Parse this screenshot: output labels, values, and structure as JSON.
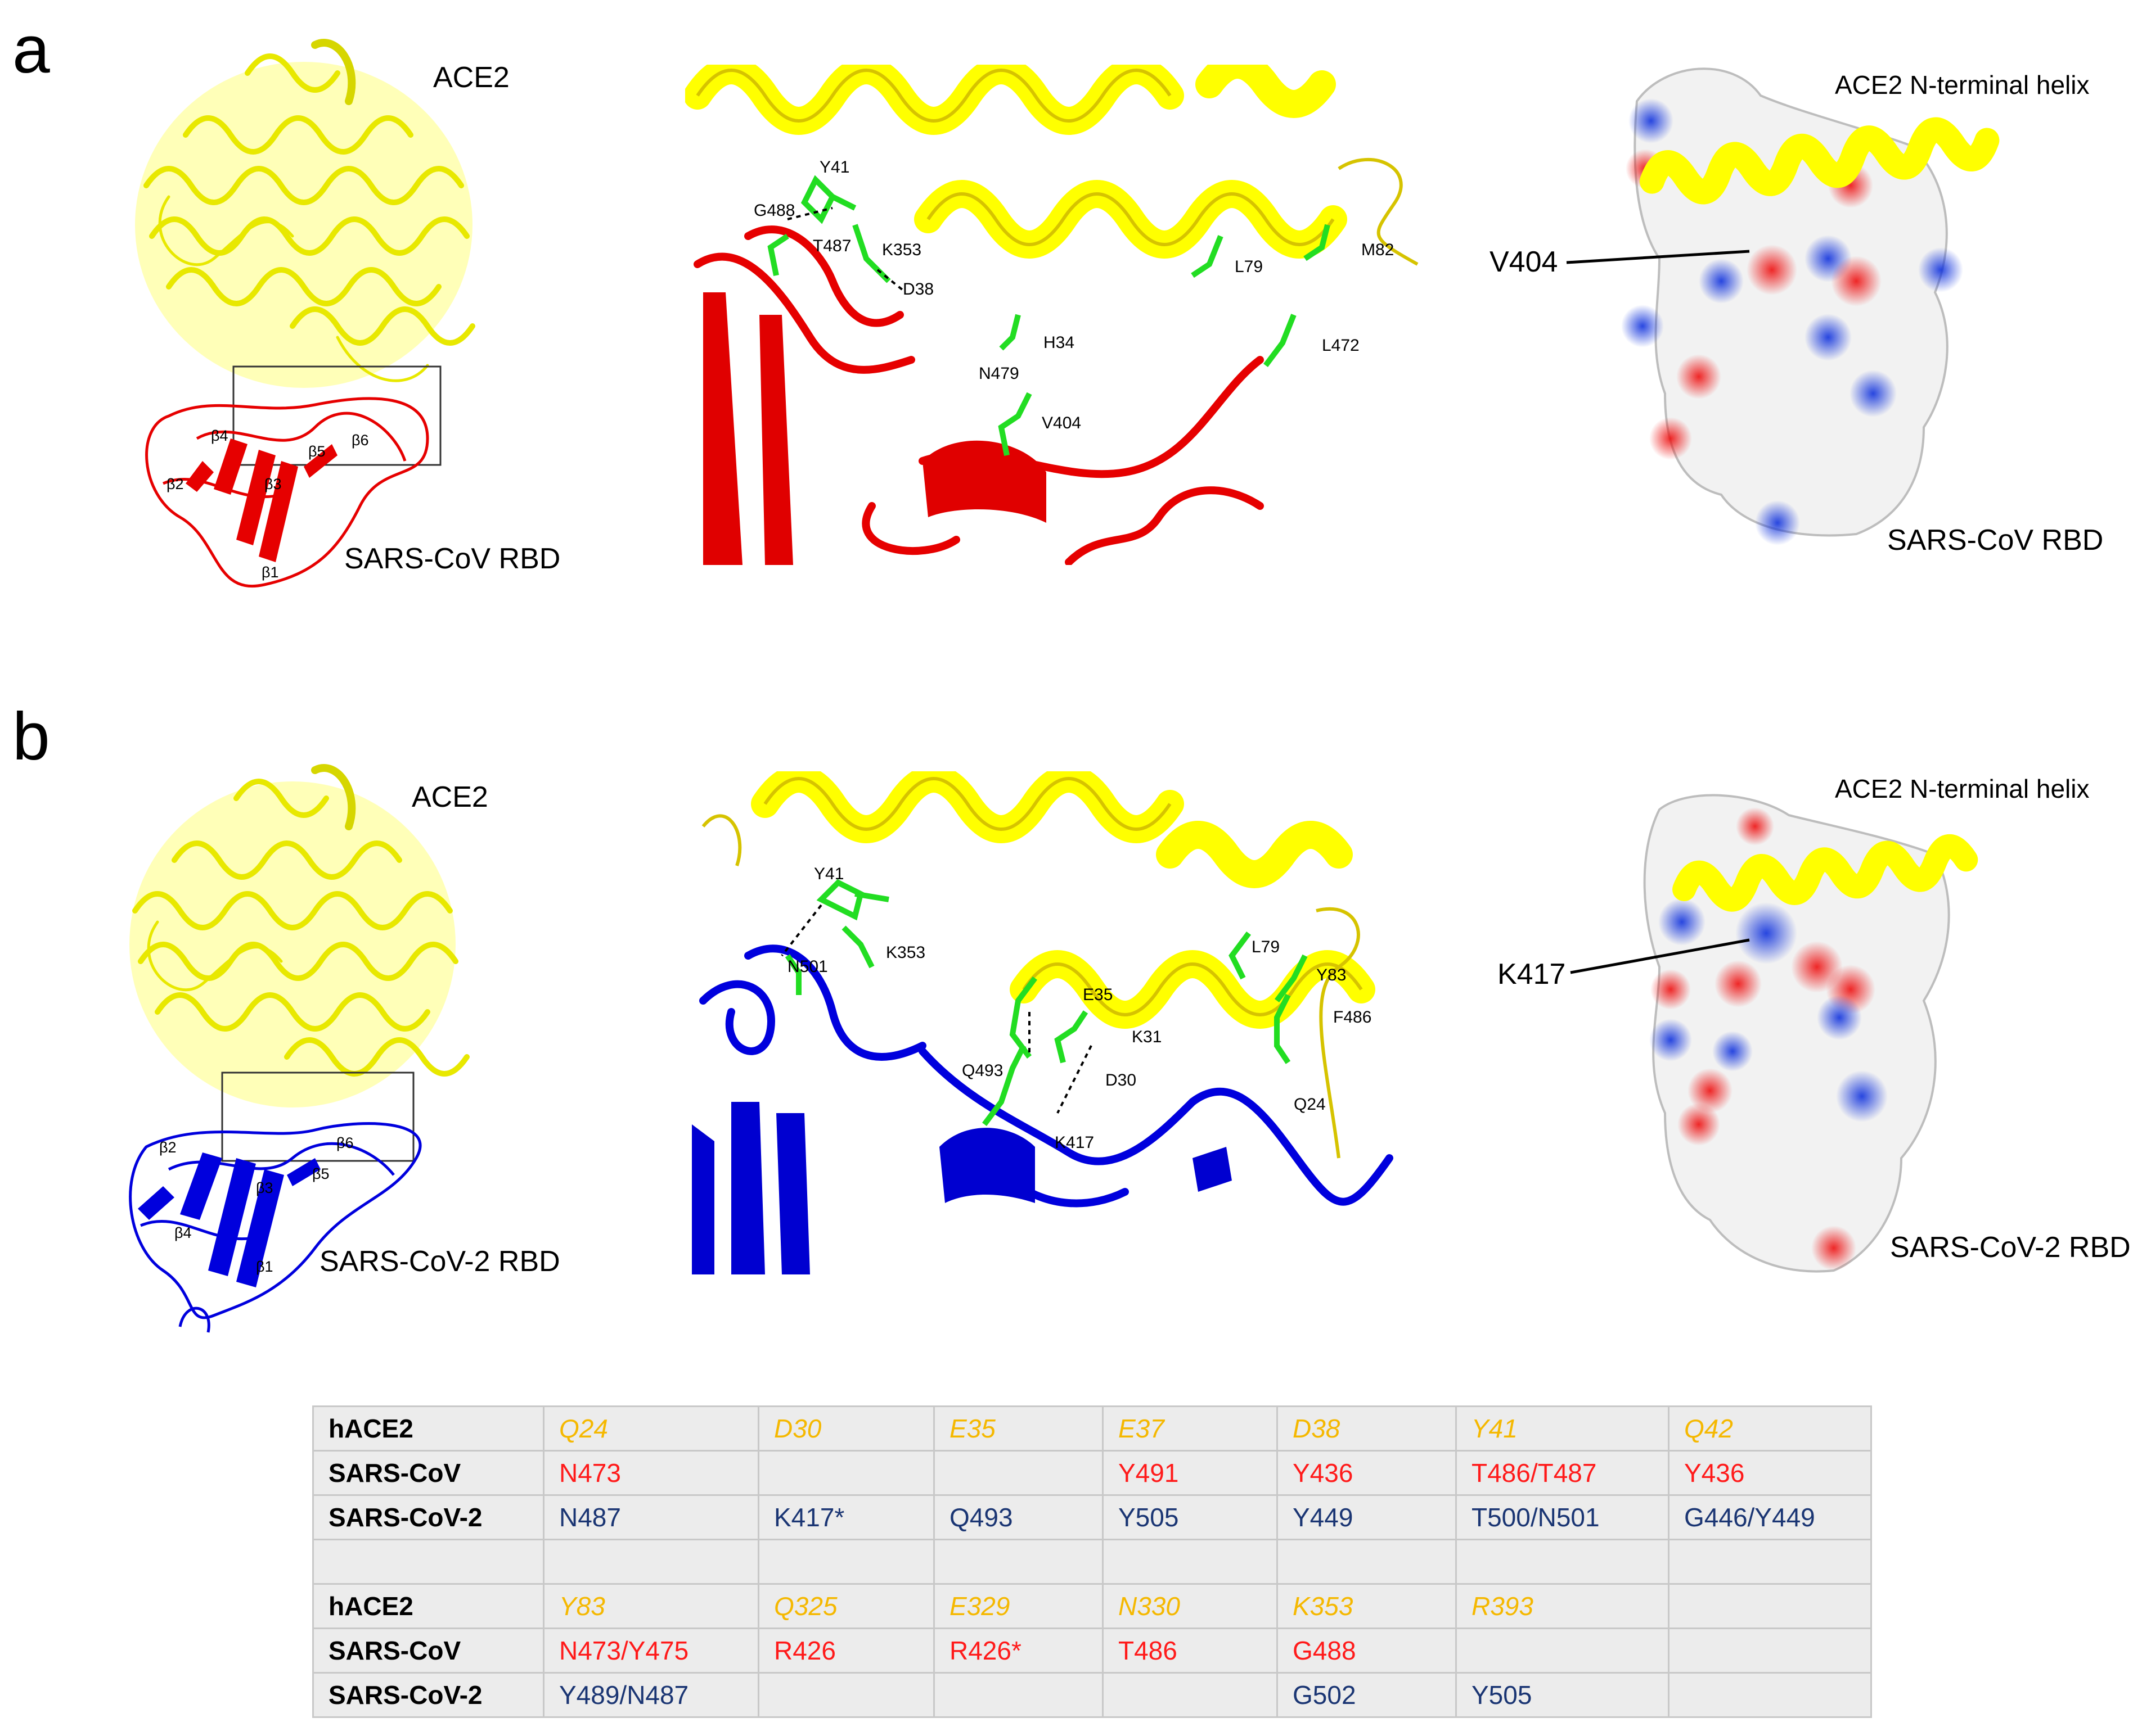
{
  "panels": {
    "a": {
      "letter": "a",
      "left_labels": {
        "ace2": "ACE2",
        "rbd": "SARS-CoV RBD"
      },
      "strands": [
        "β1",
        "β2",
        "β3",
        "β4",
        "β5",
        "β6"
      ],
      "residues": [
        "Y41",
        "G488",
        "T487",
        "K353",
        "D38",
        "H34",
        "N479",
        "V404",
        "L79",
        "M82",
        "L472"
      ],
      "surface": {
        "helix_label": "ACE2 N-terminal helix",
        "pointer": "V404",
        "rbd_label": "SARS-CoV RBD"
      },
      "colors": {
        "ace2": "#ffff00",
        "rbd": "#e60000"
      }
    },
    "b": {
      "letter": "b",
      "left_labels": {
        "ace2": "ACE2",
        "rbd": "SARS-CoV-2 RBD"
      },
      "strands": [
        "β1",
        "β2",
        "β3",
        "β4",
        "β5",
        "β6"
      ],
      "residues": [
        "Y41",
        "K353",
        "N501",
        "E35",
        "K31",
        "Q493",
        "D30",
        "K417",
        "L79",
        "Y83",
        "F486",
        "Q24"
      ],
      "surface": {
        "helix_label": "ACE2 N-terminal helix",
        "pointer": "K417",
        "rbd_label": "SARS-CoV-2 RBD"
      },
      "colors": {
        "ace2": "#ffff00",
        "rbd": "#0000dd"
      }
    }
  },
  "table": {
    "rows": [
      [
        "hACE2",
        "Q24",
        "D30",
        "E35",
        "E37",
        "D38",
        "Y41",
        "Q42"
      ],
      [
        "SARS-CoV",
        "N473",
        "",
        "",
        "Y491",
        "Y436",
        "T486/T487",
        "Y436"
      ],
      [
        "SARS-CoV-2",
        "N487",
        "K417*",
        "Q493",
        "Y505",
        "Y449",
        "T500/N501",
        "G446/Y449"
      ],
      [
        "",
        "",
        "",
        "",
        "",
        "",
        "",
        ""
      ],
      [
        "hACE2",
        "Y83",
        "Q325",
        "E329",
        "N330",
        "K353",
        "R393",
        ""
      ],
      [
        "SARS-CoV",
        "N473/Y475",
        "R426",
        "R426*",
        "T486",
        "G488",
        "",
        ""
      ],
      [
        "SARS-CoV-2",
        "Y489/N487",
        "",
        "",
        "",
        "G502",
        "Y505",
        ""
      ]
    ],
    "colors": {
      "hace2": "#f5b800",
      "sars_cov": "#ff1a1a",
      "sars_cov_2": "#1a3573"
    }
  }
}
